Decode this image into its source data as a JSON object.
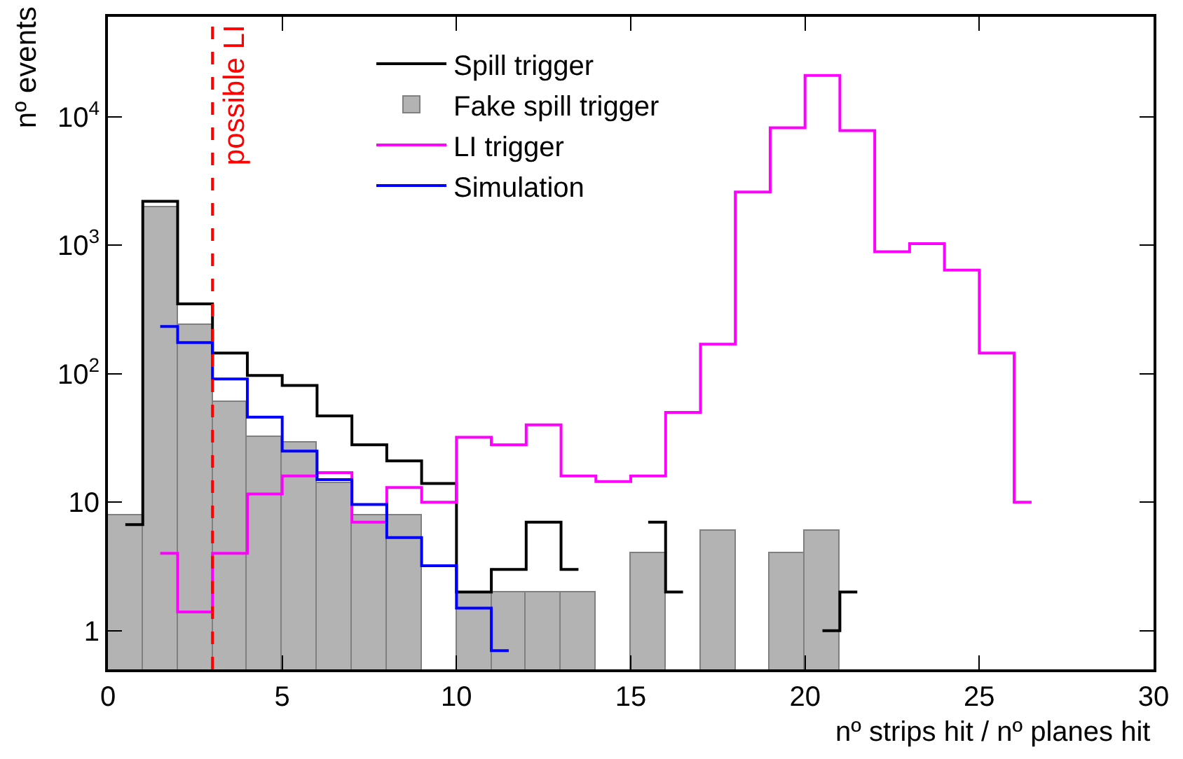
{
  "chart_data": {
    "type": "histogram",
    "xlabel": "nº strips hit / nº planes hit",
    "ylabel": "nº events",
    "bins": [
      0,
      1,
      2,
      3,
      4,
      5,
      6,
      7,
      8,
      9,
      10,
      11,
      12,
      13,
      14,
      15,
      16,
      17,
      18,
      19,
      20,
      21,
      22,
      23,
      24,
      25,
      26,
      27,
      28,
      29,
      30
    ],
    "series": [
      {
        "name": "Spill trigger",
        "type": "step",
        "color": "#000000",
        "x": [
          0.5,
          1.5,
          2.5,
          3.5,
          4.5,
          5.5,
          6.5,
          7.5,
          8.5,
          9.5,
          10.5,
          11.5,
          12.5,
          13.5,
          14.5,
          15.5,
          16.5,
          17.5,
          18.5,
          19.5,
          20.5,
          21.5
        ],
        "values": [
          6.7,
          2200,
          350,
          145,
          97,
          81,
          47,
          28,
          21,
          14,
          2,
          3,
          7,
          3,
          null,
          7,
          2,
          null,
          null,
          null,
          1,
          2
        ]
      },
      {
        "name": "Fake spill trigger",
        "color": "#b3b3b3",
        "values": [
          8,
          2000,
          240,
          61,
          32,
          29,
          14,
          8,
          8,
          null,
          2,
          2,
          2,
          2,
          null,
          4,
          null,
          6,
          null,
          4,
          6,
          null,
          null,
          null,
          null,
          null,
          null,
          null,
          null,
          null
        ]
      },
      {
        "name": "LI trigger",
        "type": "step",
        "color": "#ff00ff",
        "x": [
          1.5,
          2.5,
          3.5,
          4.5,
          5.5,
          6.5,
          7.5,
          8.5,
          9.5,
          10.5,
          11.5,
          12.5,
          13.5,
          14.5,
          15.5,
          16.5,
          17.5,
          18.5,
          19.5,
          20.5,
          21.5,
          22.5,
          23.5,
          24.5,
          25.5,
          26.5
        ],
        "values": [
          4,
          1.4,
          4,
          11.6,
          16,
          17,
          7,
          13,
          10,
          32,
          28,
          40,
          16,
          14.5,
          16,
          50,
          170,
          2600,
          8200,
          21000,
          7800,
          890,
          1030,
          640,
          145,
          10
        ]
      },
      {
        "name": "Simulation",
        "type": "step",
        "color": "#0000ff",
        "x": [
          1.5,
          2.5,
          3.5,
          4.5,
          5.5,
          6.5,
          7.5,
          8.5,
          9.5,
          10.5,
          11.5
        ],
        "values": [
          233,
          175,
          91,
          46,
          25,
          15,
          9.6,
          5.3,
          3.2,
          1.5,
          0.7
        ]
      }
    ],
    "log": "y",
    "xlim": [
      0,
      30
    ],
    "xticks": [
      0,
      5,
      10,
      15,
      20,
      25,
      30
    ],
    "ylim": [
      0.5,
      60000
    ],
    "yticks": [
      {
        "value": 1,
        "label": "1"
      },
      {
        "value": 10,
        "label": "10"
      },
      {
        "value": 100,
        "label": "10$^{2}$"
      },
      {
        "value": 1000,
        "label": "10$^{3}$"
      },
      {
        "value": 10000,
        "label": "10$^{4}$"
      }
    ],
    "ref_lines": [
      {
        "axis": "x",
        "value": 3,
        "label": "possible LI",
        "color": "#ff0000",
        "line_style": "dashed"
      }
    ],
    "legend": "top"
  }
}
